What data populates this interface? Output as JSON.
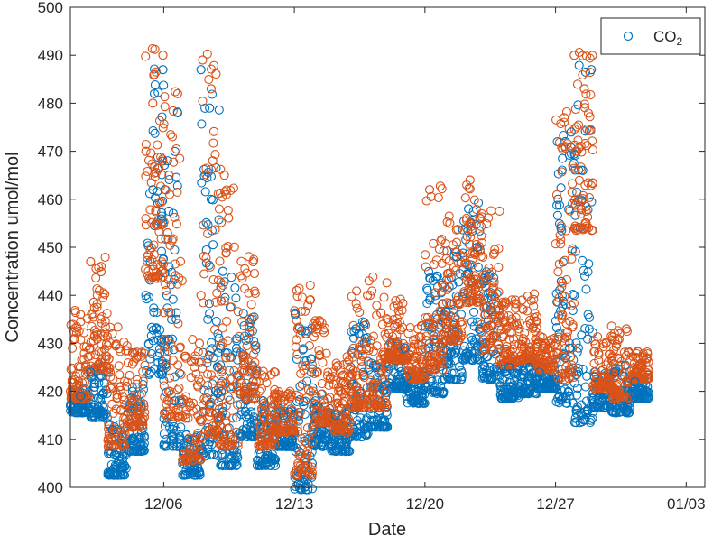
{
  "chart_data": {
    "type": "scatter",
    "title": "",
    "xlabel": "Date",
    "ylabel": "Concentration umol/mol",
    "xlim": [
      "2015-12-01",
      "2016-01-04"
    ],
    "ylim": [
      400,
      500
    ],
    "x_ticks": [
      "12/06",
      "12/13",
      "12/20",
      "12/27",
      "01/03"
    ],
    "y_ticks": [
      400,
      410,
      420,
      430,
      440,
      450,
      460,
      470,
      480,
      490,
      500
    ],
    "grid": false,
    "legend": {
      "position": "top-right",
      "label_base": "CO",
      "label_sub": "2"
    },
    "marker": "open-circle",
    "colors": {
      "series_blue": "#0072BD",
      "series_orange": "#D95319"
    },
    "series": [
      {
        "color": "blue",
        "points": [
          [
            "2015-12-01",
            417
          ],
          [
            "2015-12-01",
            419
          ],
          [
            "2015-12-02",
            424
          ],
          [
            "2015-12-02",
            416
          ],
          [
            "2015-12-03",
            407
          ],
          [
            "2015-12-03",
            404
          ],
          [
            "2015-12-03",
            412
          ],
          [
            "2015-12-04",
            409
          ],
          [
            "2015-12-04",
            420
          ],
          [
            "2015-12-05",
            425
          ],
          [
            "2015-12-05",
            462
          ],
          [
            "2015-12-05",
            487
          ],
          [
            "2015-12-05",
            482
          ],
          [
            "2015-12-05",
            440
          ],
          [
            "2015-12-06",
            418
          ],
          [
            "2015-12-06",
            410
          ],
          [
            "2015-12-06",
            435
          ],
          [
            "2015-12-06",
            468
          ],
          [
            "2015-12-06",
            478
          ],
          [
            "2015-12-07",
            410
          ],
          [
            "2015-12-07",
            404
          ],
          [
            "2015-12-08",
            408
          ],
          [
            "2015-12-08",
            428
          ],
          [
            "2015-12-08",
            479
          ],
          [
            "2015-12-08",
            487
          ],
          [
            "2015-12-08",
            460
          ],
          [
            "2015-12-09",
            420
          ],
          [
            "2015-12-09",
            406
          ],
          [
            "2015-12-09",
            445
          ],
          [
            "2015-12-10",
            435
          ],
          [
            "2015-12-10",
            412
          ],
          [
            "2015-12-11",
            406
          ],
          [
            "2015-12-11",
            418
          ],
          [
            "2015-12-12",
            410
          ],
          [
            "2015-12-12",
            415
          ],
          [
            "2015-12-13",
            405
          ],
          [
            "2015-12-13",
            401
          ],
          [
            "2015-12-13",
            436
          ],
          [
            "2015-12-14",
            410
          ],
          [
            "2015-12-14",
            418
          ],
          [
            "2015-12-15",
            409
          ],
          [
            "2015-12-15",
            415
          ],
          [
            "2015-12-16",
            412
          ],
          [
            "2015-12-16",
            433
          ],
          [
            "2015-12-17",
            414
          ],
          [
            "2015-12-17",
            425
          ],
          [
            "2015-12-18",
            429
          ],
          [
            "2015-12-18",
            422
          ],
          [
            "2015-12-19",
            423
          ],
          [
            "2015-12-19",
            419
          ],
          [
            "2015-12-20",
            421
          ],
          [
            "2015-12-20",
            444
          ],
          [
            "2015-12-21",
            424
          ],
          [
            "2015-12-21",
            448
          ],
          [
            "2015-12-22",
            428
          ],
          [
            "2015-12-22",
            450
          ],
          [
            "2015-12-22",
            458
          ],
          [
            "2015-12-23",
            424
          ],
          [
            "2015-12-23",
            444
          ],
          [
            "2015-12-24",
            420
          ],
          [
            "2015-12-24",
            425
          ],
          [
            "2015-12-25",
            421
          ],
          [
            "2015-12-25",
            425
          ],
          [
            "2015-12-26",
            424
          ],
          [
            "2015-12-26",
            422
          ],
          [
            "2015-12-27",
            419
          ],
          [
            "2015-12-27",
            429
          ],
          [
            "2015-12-27",
            454
          ],
          [
            "2015-12-27",
            474
          ],
          [
            "2015-12-28",
            415
          ],
          [
            "2015-12-28",
            487
          ],
          [
            "2015-12-28",
            466
          ],
          [
            "2015-12-28",
            440
          ],
          [
            "2015-12-29",
            418
          ],
          [
            "2015-12-29",
            423
          ],
          [
            "2015-12-30",
            417
          ],
          [
            "2015-12-30",
            424
          ],
          [
            "2015-12-31",
            420
          ],
          [
            "2015-12-31",
            422
          ]
        ]
      },
      {
        "color": "orange",
        "points": [
          [
            "2015-12-01",
            420
          ],
          [
            "2015-12-01",
            436
          ],
          [
            "2015-12-02",
            447
          ],
          [
            "2015-12-02",
            426
          ],
          [
            "2015-12-03",
            410
          ],
          [
            "2015-12-03",
            416
          ],
          [
            "2015-12-03",
            432
          ],
          [
            "2015-12-04",
            414
          ],
          [
            "2015-12-04",
            428
          ],
          [
            "2015-12-05",
            445
          ],
          [
            "2015-12-05",
            480
          ],
          [
            "2015-12-05",
            490
          ],
          [
            "2015-12-05",
            486
          ],
          [
            "2015-12-05",
            470
          ],
          [
            "2015-12-05",
            455
          ],
          [
            "2015-12-06",
            425
          ],
          [
            "2015-12-06",
            416
          ],
          [
            "2015-12-06",
            453
          ],
          [
            "2015-12-06",
            482
          ],
          [
            "2015-12-06",
            465
          ],
          [
            "2015-12-07",
            415
          ],
          [
            "2015-12-07",
            407
          ],
          [
            "2015-12-07",
            430
          ],
          [
            "2015-12-08",
            412
          ],
          [
            "2015-12-08",
            440
          ],
          [
            "2015-12-08",
            483
          ],
          [
            "2015-12-08",
            489
          ],
          [
            "2015-12-08",
            468
          ],
          [
            "2015-12-09",
            430
          ],
          [
            "2015-12-09",
            410
          ],
          [
            "2015-12-09",
            465
          ],
          [
            "2015-12-10",
            447
          ],
          [
            "2015-12-10",
            420
          ],
          [
            "2015-12-11",
            410
          ],
          [
            "2015-12-11",
            423
          ],
          [
            "2015-12-11",
            412
          ],
          [
            "2015-12-12",
            419
          ],
          [
            "2015-12-12",
            413
          ],
          [
            "2015-12-13",
            406
          ],
          [
            "2015-12-13",
            441
          ],
          [
            "2015-12-13",
            404
          ],
          [
            "2015-12-14",
            434
          ],
          [
            "2015-12-14",
            415
          ],
          [
            "2015-12-15",
            413
          ],
          [
            "2015-12-15",
            426
          ],
          [
            "2015-12-16",
            418
          ],
          [
            "2015-12-16",
            440
          ],
          [
            "2015-12-17",
            418
          ],
          [
            "2015-12-17",
            443
          ],
          [
            "2015-12-18",
            438
          ],
          [
            "2015-12-18",
            428
          ],
          [
            "2015-12-19",
            433
          ],
          [
            "2015-12-19",
            424
          ],
          [
            "2015-12-20",
            426
          ],
          [
            "2015-12-20",
            462
          ],
          [
            "2015-12-21",
            432
          ],
          [
            "2015-12-21",
            455
          ],
          [
            "2015-12-22",
            440
          ],
          [
            "2015-12-22",
            464
          ],
          [
            "2015-12-22",
            456
          ],
          [
            "2015-12-23",
            430
          ],
          [
            "2015-12-23",
            457
          ],
          [
            "2015-12-24",
            427
          ],
          [
            "2015-12-24",
            438
          ],
          [
            "2015-12-25",
            428
          ],
          [
            "2015-12-25",
            439
          ],
          [
            "2015-12-26",
            430
          ],
          [
            "2015-12-26",
            426
          ],
          [
            "2015-12-27",
            424
          ],
          [
            "2015-12-27",
            436
          ],
          [
            "2015-12-27",
            467
          ],
          [
            "2015-12-27",
            477
          ],
          [
            "2015-12-28",
            490
          ],
          [
            "2015-12-28",
            483
          ],
          [
            "2015-12-28",
            470
          ],
          [
            "2015-12-28",
            455
          ],
          [
            "2015-12-29",
            422
          ],
          [
            "2015-12-29",
            430
          ],
          [
            "2015-12-30",
            420
          ],
          [
            "2015-12-30",
            433
          ],
          [
            "2015-12-31",
            424
          ],
          [
            "2015-12-31",
            427
          ]
        ]
      }
    ]
  }
}
